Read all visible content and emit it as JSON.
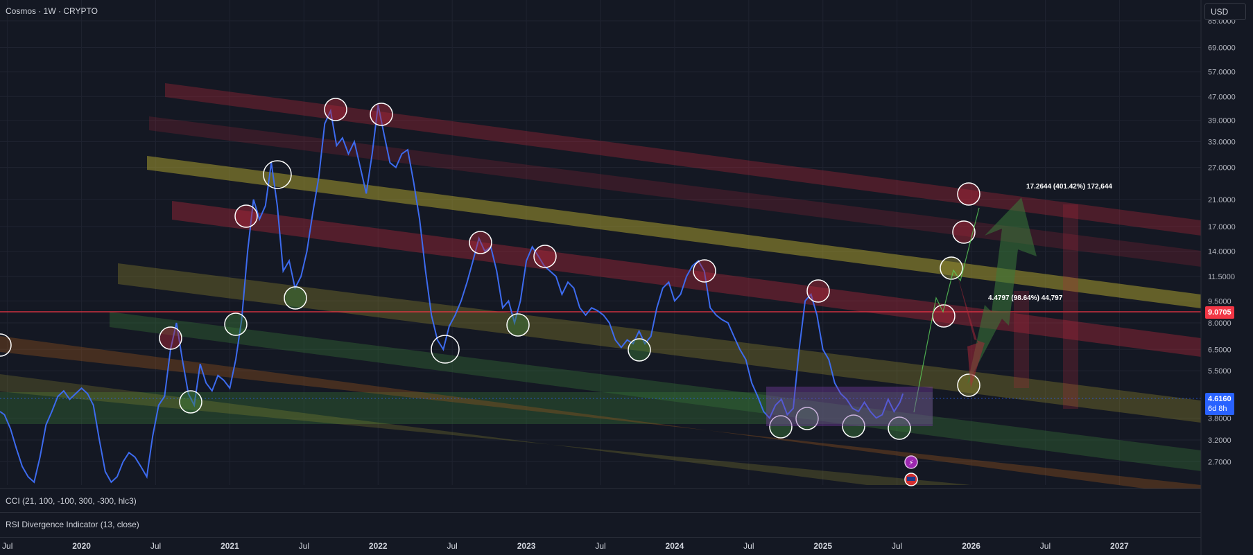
{
  "header": {
    "title": "Cosmos · 1W · CRYPTO",
    "currency": "USD"
  },
  "indicators": [
    {
      "label": "CCI (21, 100, -100, 300, -300, hlc3)"
    },
    {
      "label": "RSI Divergence Indicator (13, close)"
    }
  ],
  "badges": {
    "level": "9.0705",
    "last_price": "4.6160",
    "countdown": "6d 8h"
  },
  "colors": {
    "line": "#3d6bef",
    "red_band": "#b1283a",
    "yellow_band": "#b3a730",
    "green_band": "#3a7a3a",
    "orange_band": "#a05a1e",
    "level_line": "#f23645",
    "last_price_bg": "#2962ff"
  },
  "annotations": {
    "upper_target": "17.2644 (401.42%) 172,644",
    "lower_target": "4.4797 (98.64%) 44,797"
  },
  "chart_data": {
    "type": "line",
    "title": "Cosmos · 1W · CRYPTO",
    "xlabel": "",
    "ylabel": "",
    "y_scale": "log",
    "y_ticks": [
      "85.0000",
      "69.0000",
      "57.0000",
      "47.0000",
      "39.0000",
      "33.0000",
      "27.0000",
      "21.0000",
      "17.0000",
      "14.0000",
      "11.5000",
      "9.5000",
      "8.0000",
      "6.5000",
      "5.5000",
      "4.6160",
      "3.8000",
      "3.2000",
      "2.7000"
    ],
    "x_ticks": [
      "Jul",
      "2020",
      "Jul",
      "2021",
      "Jul",
      "2022",
      "Jul",
      "2023",
      "Jul",
      "2024",
      "Jul",
      "2025",
      "Jul",
      "2026",
      "Jul",
      "2027"
    ],
    "xlim": [
      2019.45,
      2027.55
    ],
    "ylim": [
      2.25,
      100
    ],
    "series": [
      {
        "x": [
          2019.45,
          2019.48,
          2019.52,
          2019.56,
          2019.6,
          2019.64,
          2019.68,
          2019.72,
          2019.76,
          2019.8,
          2019.84,
          2019.88,
          2019.92,
          2019.96,
          2020.0,
          2020.04,
          2020.08,
          2020.12,
          2020.16,
          2020.2,
          2020.24,
          2020.28,
          2020.32,
          2020.36,
          2020.4,
          2020.44,
          2020.48,
          2020.52,
          2020.56,
          2020.6,
          2020.64,
          2020.68,
          2020.72,
          2020.76,
          2020.8,
          2020.84,
          2020.88,
          2020.92,
          2020.96,
          2021.0,
          2021.04,
          2021.08,
          2021.12,
          2021.16,
          2021.2,
          2021.24,
          2021.28,
          2021.32,
          2021.36,
          2021.4,
          2021.44,
          2021.48,
          2021.52,
          2021.56,
          2021.6,
          2021.64,
          2021.68,
          2021.72,
          2021.76,
          2021.8,
          2021.84,
          2021.88,
          2021.92,
          2021.96,
          2022.0,
          2022.04,
          2022.08,
          2022.12,
          2022.16,
          2022.2,
          2022.24,
          2022.28,
          2022.32,
          2022.36,
          2022.4,
          2022.44,
          2022.48,
          2022.52,
          2022.56,
          2022.6,
          2022.64,
          2022.68,
          2022.72,
          2022.76,
          2022.8,
          2022.84,
          2022.88,
          2022.92,
          2022.96,
          2023.0,
          2023.04,
          2023.08,
          2023.12,
          2023.16,
          2023.2,
          2023.24,
          2023.28,
          2023.32,
          2023.36,
          2023.4,
          2023.44,
          2023.48,
          2023.52,
          2023.56,
          2023.6,
          2023.64,
          2023.68,
          2023.72,
          2023.76,
          2023.8,
          2023.84,
          2023.88,
          2023.92,
          2023.96,
          2024.0,
          2024.04,
          2024.08,
          2024.12,
          2024.16,
          2024.2,
          2024.24,
          2024.28,
          2024.32,
          2024.36,
          2024.4,
          2024.44,
          2024.48,
          2024.52,
          2024.56,
          2024.6,
          2024.64,
          2024.68,
          2024.72,
          2024.76,
          2024.8,
          2024.84,
          2024.88,
          2024.92,
          2024.96,
          2025.0,
          2025.04,
          2025.08,
          2025.12,
          2025.16,
          2025.2,
          2025.24,
          2025.28,
          2025.32,
          2025.36,
          2025.4,
          2025.44,
          2025.48,
          2025.52,
          2025.54
        ],
        "y": [
          4.0,
          3.9,
          3.5,
          3.0,
          2.6,
          2.4,
          2.3,
          2.8,
          3.6,
          4.0,
          4.5,
          4.7,
          4.4,
          4.6,
          4.8,
          4.6,
          4.2,
          3.2,
          2.5,
          2.3,
          2.4,
          2.7,
          2.9,
          2.8,
          2.6,
          2.4,
          3.3,
          4.2,
          4.5,
          6.5,
          8.0,
          6.0,
          4.6,
          4.2,
          5.8,
          5.0,
          4.7,
          5.3,
          5.1,
          4.8,
          6.0,
          8.2,
          14.0,
          21.0,
          18.0,
          20.0,
          28.0,
          20.0,
          12.0,
          13.0,
          10.5,
          11.5,
          14.0,
          19.0,
          25.0,
          38.0,
          42.0,
          32.0,
          34.0,
          30.0,
          33.0,
          27.0,
          22.0,
          30.0,
          44.0,
          35.0,
          28.0,
          27.0,
          30.0,
          31.0,
          24.0,
          18.0,
          12.0,
          8.5,
          7.0,
          6.5,
          7.8,
          8.5,
          9.5,
          11.0,
          13.0,
          15.5,
          14.0,
          14.5,
          12.0,
          9.0,
          9.5,
          8.0,
          9.5,
          13.0,
          14.5,
          13.5,
          12.5,
          12.0,
          11.5,
          10.0,
          11.0,
          10.5,
          9.0,
          8.5,
          9.0,
          8.8,
          8.5,
          8.0,
          7.0,
          6.6,
          7.0,
          6.8,
          7.5,
          6.8,
          7.2,
          9.0,
          10.5,
          11.0,
          9.5,
          10.0,
          11.5,
          12.5,
          13.0,
          12.0,
          9.0,
          8.5,
          8.2,
          8.0,
          7.2,
          6.5,
          6.0,
          5.0,
          4.5,
          4.0,
          3.8,
          4.2,
          4.4,
          3.9,
          4.1,
          6.5,
          9.5,
          10.0,
          8.5,
          6.5,
          6.0,
          5.0,
          4.6,
          4.4,
          4.1,
          4.0,
          4.3,
          4.0,
          3.8,
          3.9,
          4.4,
          4.0,
          4.3,
          4.6
        ]
      }
    ]
  }
}
